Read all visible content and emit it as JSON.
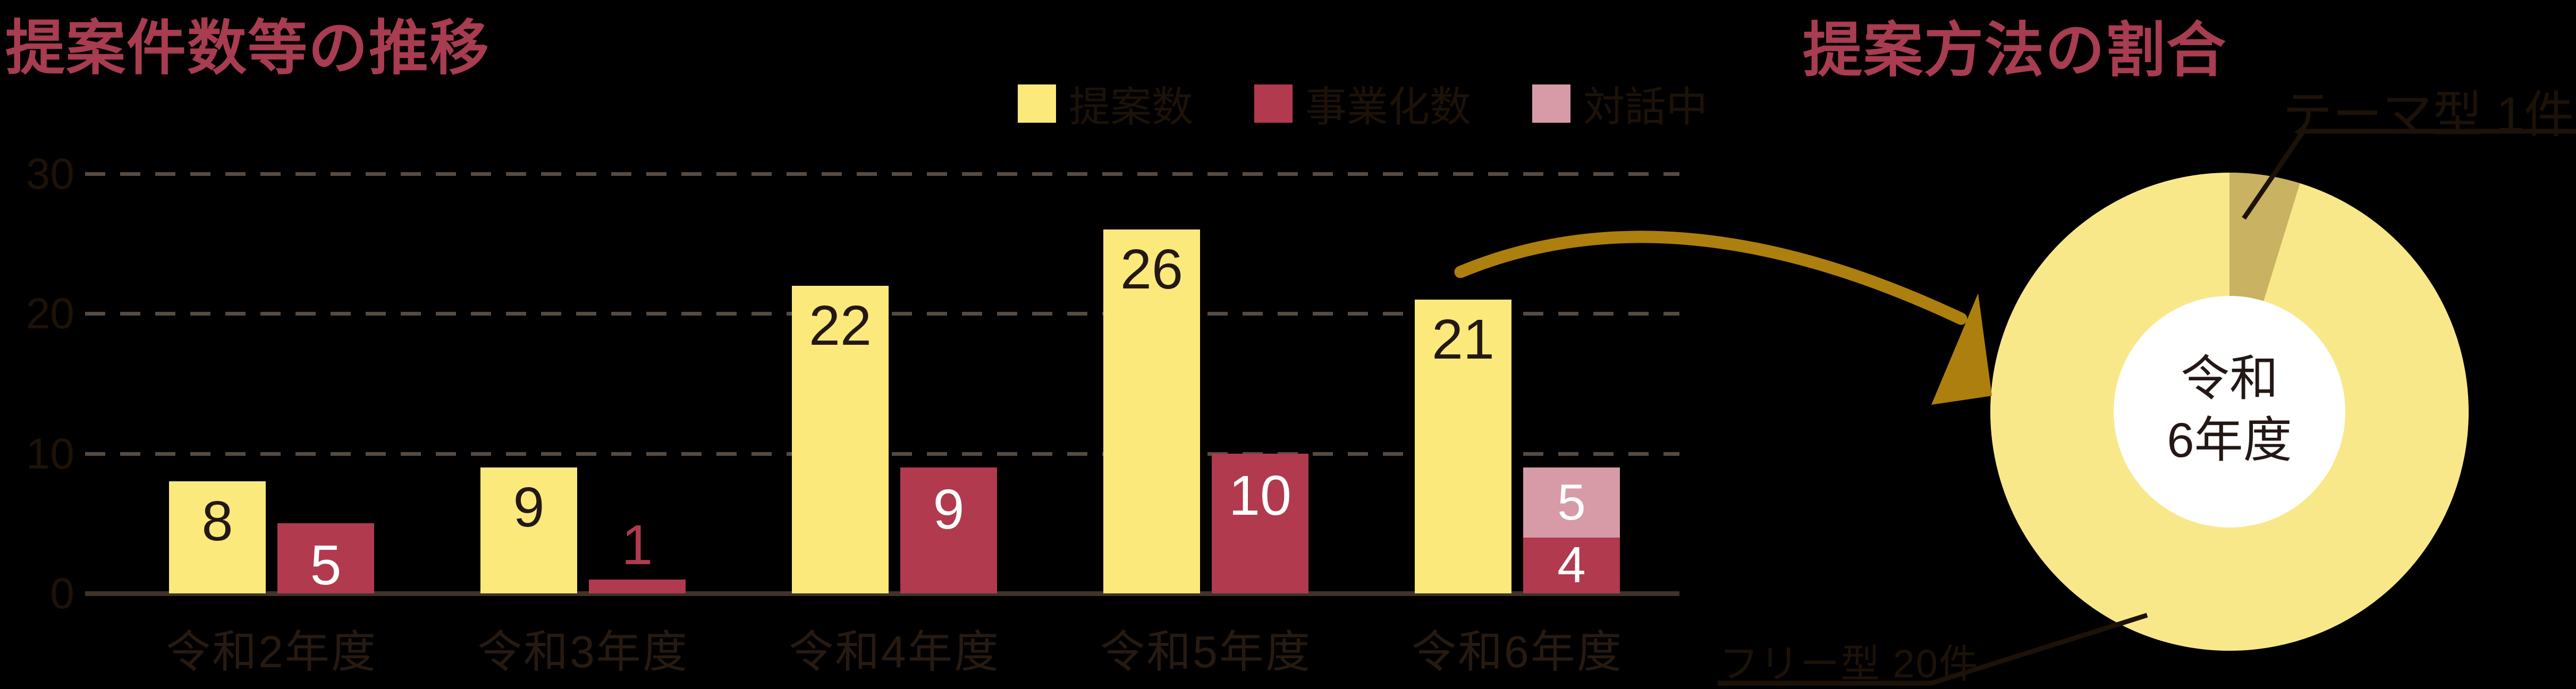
{
  "left_chart": {
    "title": "提案件数等の推移",
    "legend": [
      {
        "label": "提案数",
        "color": "#fce97c"
      },
      {
        "label": "事業化数",
        "color": "#b13a4e"
      },
      {
        "label": "対話中",
        "color": "#d69ba7"
      }
    ],
    "chart_data": {
      "type": "bar",
      "categories": [
        "令和2年度",
        "令和3年度",
        "令和4年度",
        "令和5年度",
        "令和6年度"
      ],
      "series": [
        {
          "name": "提案数",
          "values": [
            8,
            9,
            22,
            26,
            21
          ],
          "color": "#fce97c"
        },
        {
          "name": "事業化数",
          "values": [
            5,
            1,
            9,
            10,
            4
          ],
          "color": "#b13a4e"
        },
        {
          "name": "対話中",
          "values": [
            0,
            0,
            0,
            0,
            5
          ],
          "color": "#d69ba7",
          "stacked_on": "事業化数"
        }
      ],
      "ylim": [
        0,
        30
      ],
      "yticks": [
        0,
        10,
        20,
        30
      ],
      "grid": "dashed-horizontal",
      "legend_position": "top-right"
    }
  },
  "right_chart": {
    "title": "提案方法の割合",
    "center_label_line1": "令和",
    "center_label_line2": "6年度",
    "callout_theme": "テーマ型 1件",
    "callout_free": "フリー型 20件",
    "chart_data": {
      "type": "pie",
      "segments": [
        {
          "label": "フリー型",
          "value": 20,
          "unit": "件",
          "color": "#f8e88a"
        },
        {
          "label": "テーマ型",
          "value": 1,
          "unit": "件",
          "color": "#c9b261"
        }
      ],
      "donut_hole": true,
      "start_angle_deg": 0,
      "direction": "clockwise"
    }
  },
  "colors": {
    "background": "#000000",
    "title_red": "#a83c50",
    "bar_yellow": "#fce97c",
    "bar_red": "#b13a4e",
    "bar_pink": "#d69ba7",
    "donut_yellow": "#f8e88a",
    "donut_tan": "#c9b261",
    "number_dark": "#231815",
    "number_white": "#ffffff",
    "label_dark": "#1d1208",
    "grid_dash": "#564b42",
    "axis_line": "#403328",
    "arrow_gold": "#ad7f0e"
  }
}
